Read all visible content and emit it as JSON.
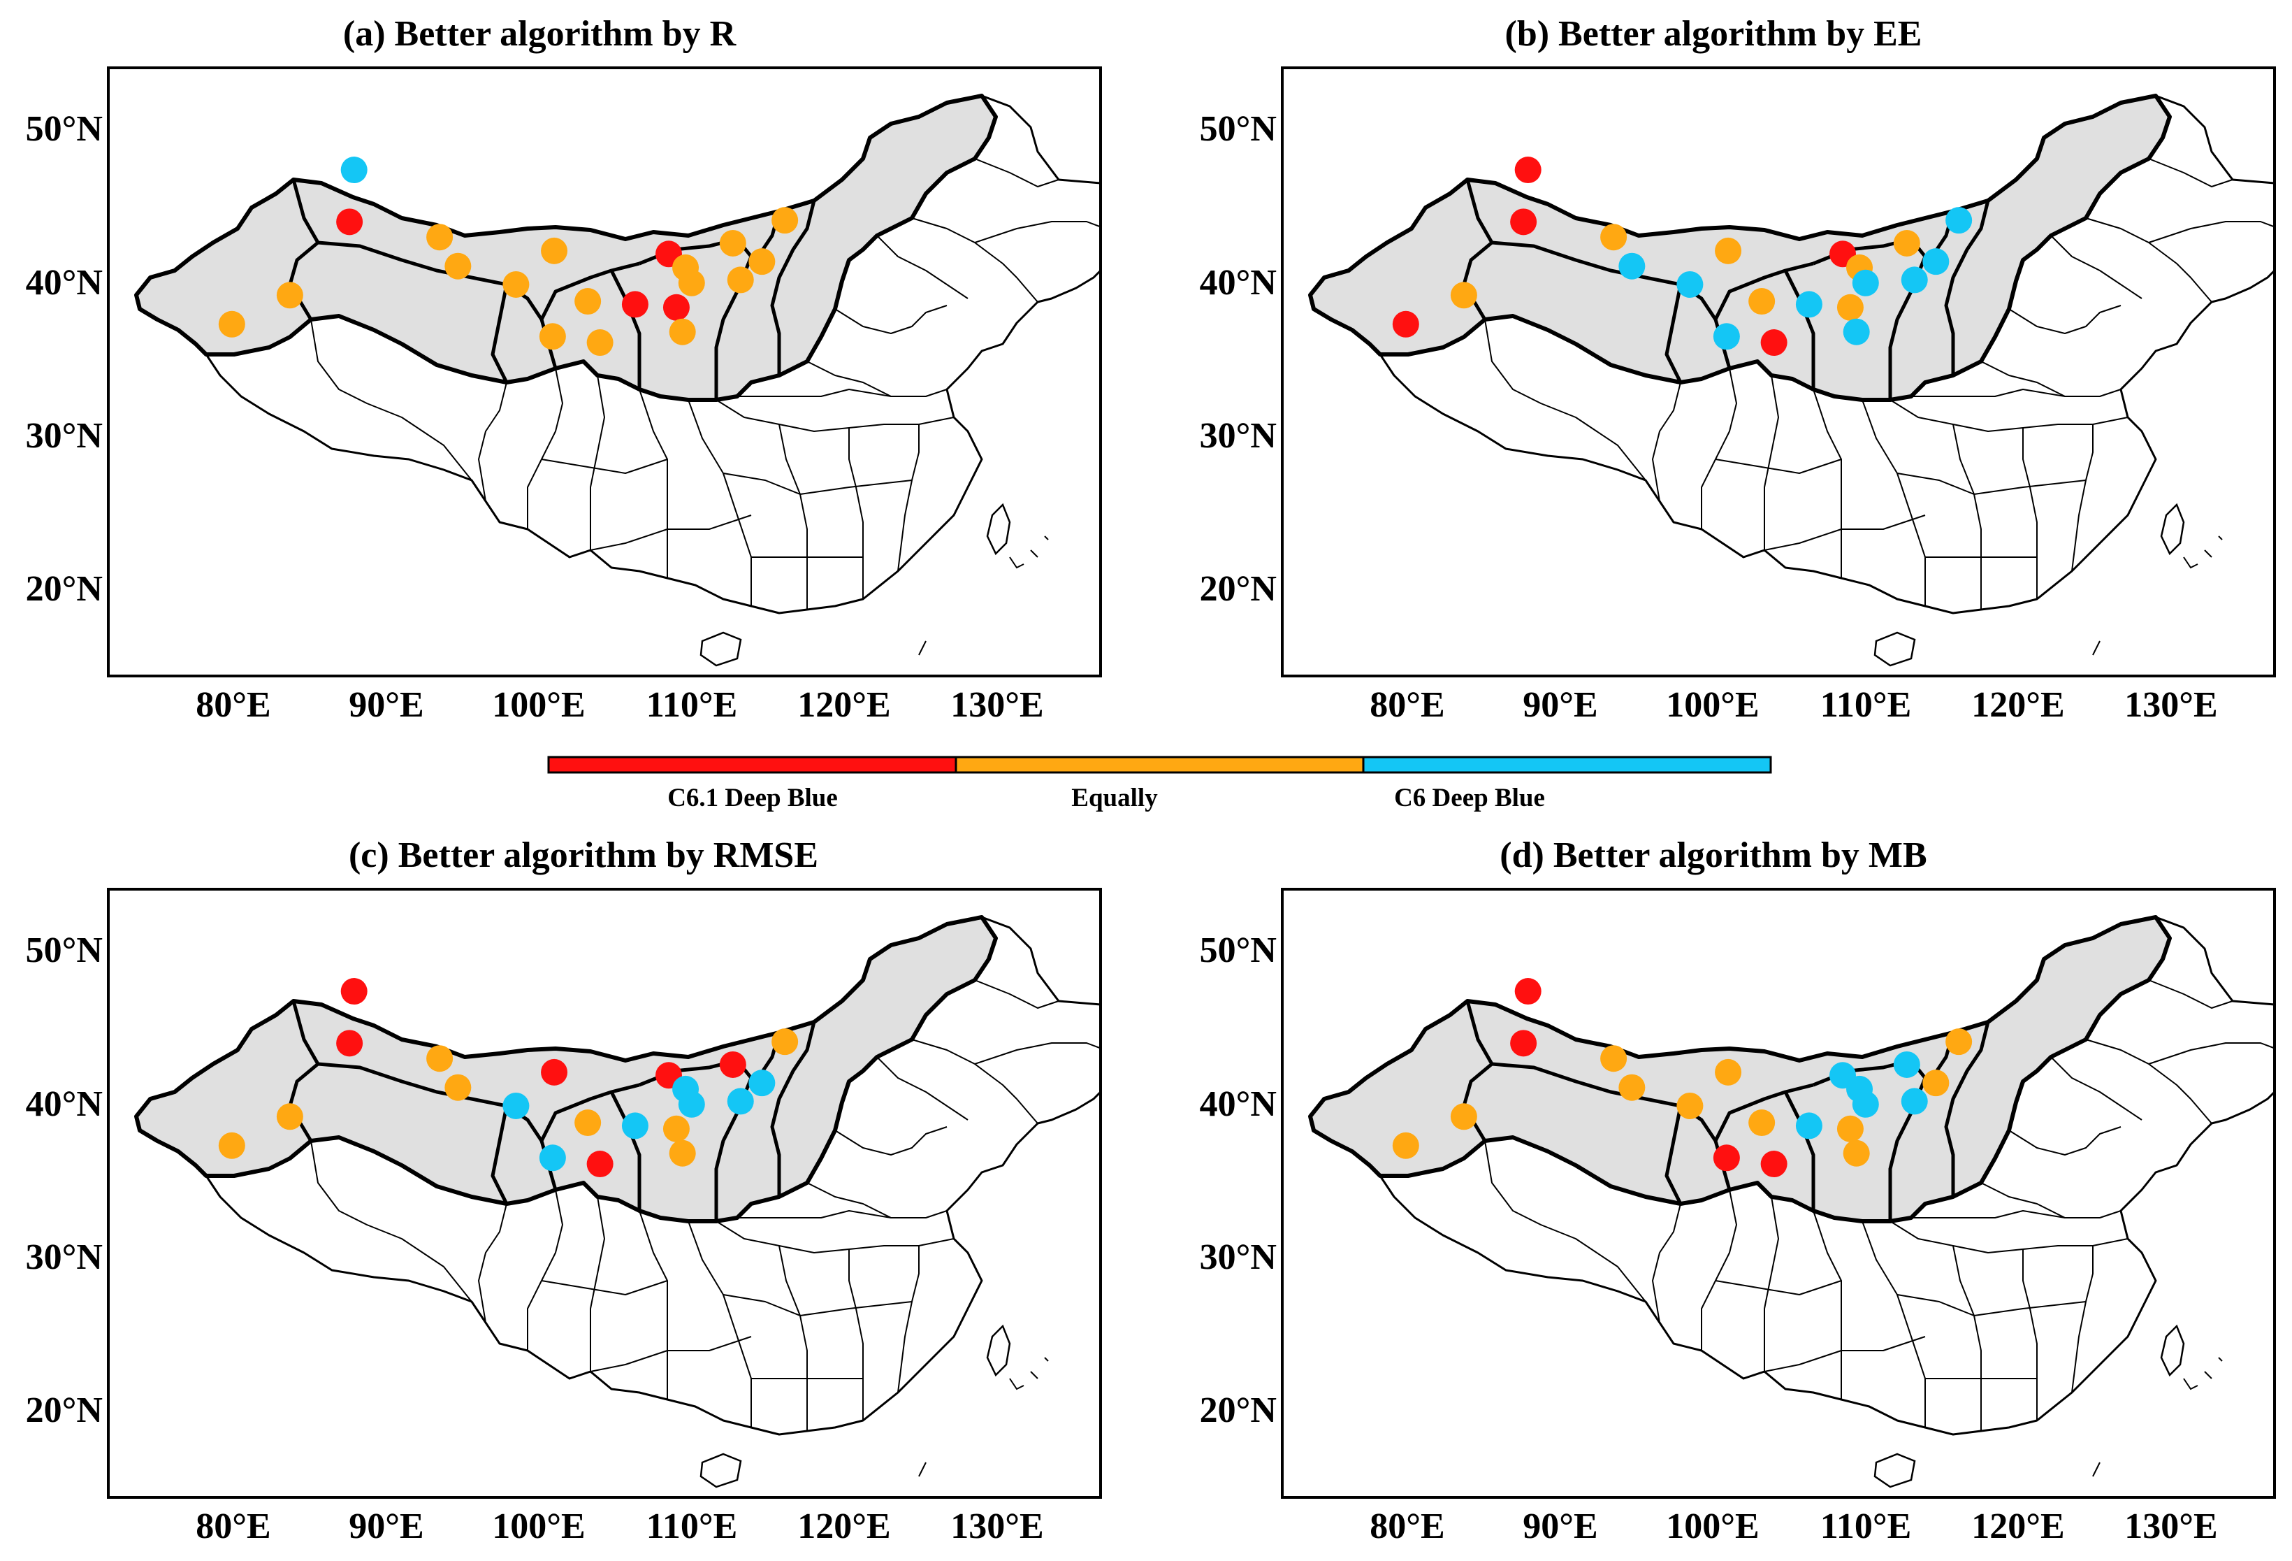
{
  "figure": {
    "panels": [
      {
        "title": "(a) Better algorithm by R",
        "sites": [
          {
            "lon": 87.9,
            "lat": 47.3,
            "cat": "C6 Deep Blue"
          },
          {
            "lon": 87.6,
            "lat": 43.9,
            "cat": "C6.1 Deep Blue"
          },
          {
            "lon": 79.9,
            "lat": 37.2,
            "cat": "Equally"
          },
          {
            "lon": 83.7,
            "lat": 39.1,
            "cat": "Equally"
          },
          {
            "lon": 93.5,
            "lat": 42.9,
            "cat": "Equally"
          },
          {
            "lon": 94.7,
            "lat": 41.0,
            "cat": "Equally"
          },
          {
            "lon": 98.5,
            "lat": 39.8,
            "cat": "Equally"
          },
          {
            "lon": 101.0,
            "lat": 42.0,
            "cat": "Equally"
          },
          {
            "lon": 100.9,
            "lat": 36.4,
            "cat": "Equally"
          },
          {
            "lon": 103.2,
            "lat": 38.7,
            "cat": "Equally"
          },
          {
            "lon": 104.0,
            "lat": 36.0,
            "cat": "Equally"
          },
          {
            "lon": 106.3,
            "lat": 38.5,
            "cat": "C6.1 Deep Blue"
          },
          {
            "lon": 108.5,
            "lat": 41.8,
            "cat": "C6.1 Deep Blue"
          },
          {
            "lon": 109.0,
            "lat": 38.3,
            "cat": "C6.1 Deep Blue"
          },
          {
            "lon": 109.6,
            "lat": 40.9,
            "cat": "Equally"
          },
          {
            "lon": 110.0,
            "lat": 39.9,
            "cat": "Equally"
          },
          {
            "lon": 109.4,
            "lat": 36.7,
            "cat": "Equally"
          },
          {
            "lon": 112.7,
            "lat": 42.5,
            "cat": "Equally"
          },
          {
            "lon": 113.2,
            "lat": 40.1,
            "cat": "Equally"
          },
          {
            "lon": 114.6,
            "lat": 41.3,
            "cat": "Equally"
          },
          {
            "lon": 116.1,
            "lat": 44.0,
            "cat": "Equally"
          }
        ]
      },
      {
        "title": "(b) Better algorithm by EE",
        "sites": [
          {
            "lon": 87.9,
            "lat": 47.3,
            "cat": "C6.1 Deep Blue"
          },
          {
            "lon": 87.6,
            "lat": 43.9,
            "cat": "C6.1 Deep Blue"
          },
          {
            "lon": 79.9,
            "lat": 37.2,
            "cat": "C6.1 Deep Blue"
          },
          {
            "lon": 83.7,
            "lat": 39.1,
            "cat": "Equally"
          },
          {
            "lon": 93.5,
            "lat": 42.9,
            "cat": "Equally"
          },
          {
            "lon": 94.7,
            "lat": 41.0,
            "cat": "C6 Deep Blue"
          },
          {
            "lon": 98.5,
            "lat": 39.8,
            "cat": "C6 Deep Blue"
          },
          {
            "lon": 101.0,
            "lat": 42.0,
            "cat": "Equally"
          },
          {
            "lon": 100.9,
            "lat": 36.4,
            "cat": "C6 Deep Blue"
          },
          {
            "lon": 103.2,
            "lat": 38.7,
            "cat": "Equally"
          },
          {
            "lon": 104.0,
            "lat": 36.0,
            "cat": "C6.1 Deep Blue"
          },
          {
            "lon": 106.3,
            "lat": 38.5,
            "cat": "C6 Deep Blue"
          },
          {
            "lon": 108.5,
            "lat": 41.8,
            "cat": "C6.1 Deep Blue"
          },
          {
            "lon": 109.0,
            "lat": 38.3,
            "cat": "Equally"
          },
          {
            "lon": 109.6,
            "lat": 40.9,
            "cat": "Equally"
          },
          {
            "lon": 110.0,
            "lat": 39.9,
            "cat": "C6 Deep Blue"
          },
          {
            "lon": 109.4,
            "lat": 36.7,
            "cat": "C6 Deep Blue"
          },
          {
            "lon": 112.7,
            "lat": 42.5,
            "cat": "Equally"
          },
          {
            "lon": 113.2,
            "lat": 40.1,
            "cat": "C6 Deep Blue"
          },
          {
            "lon": 114.6,
            "lat": 41.3,
            "cat": "C6 Deep Blue"
          },
          {
            "lon": 116.1,
            "lat": 44.0,
            "cat": "C6 Deep Blue"
          }
        ]
      },
      {
        "title": "(c) Better algorithm by RMSE",
        "sites": [
          {
            "lon": 87.9,
            "lat": 47.3,
            "cat": "C6.1 Deep Blue"
          },
          {
            "lon": 87.6,
            "lat": 43.9,
            "cat": "C6.1 Deep Blue"
          },
          {
            "lon": 79.9,
            "lat": 37.2,
            "cat": "Equally"
          },
          {
            "lon": 83.7,
            "lat": 39.1,
            "cat": "Equally"
          },
          {
            "lon": 93.5,
            "lat": 42.9,
            "cat": "Equally"
          },
          {
            "lon": 94.7,
            "lat": 41.0,
            "cat": "Equally"
          },
          {
            "lon": 98.5,
            "lat": 39.8,
            "cat": "C6 Deep Blue"
          },
          {
            "lon": 101.0,
            "lat": 42.0,
            "cat": "C6.1 Deep Blue"
          },
          {
            "lon": 100.9,
            "lat": 36.4,
            "cat": "C6 Deep Blue"
          },
          {
            "lon": 103.2,
            "lat": 38.7,
            "cat": "Equally"
          },
          {
            "lon": 104.0,
            "lat": 36.0,
            "cat": "C6.1 Deep Blue"
          },
          {
            "lon": 106.3,
            "lat": 38.5,
            "cat": "C6 Deep Blue"
          },
          {
            "lon": 108.5,
            "lat": 41.8,
            "cat": "C6.1 Deep Blue"
          },
          {
            "lon": 109.0,
            "lat": 38.3,
            "cat": "Equally"
          },
          {
            "lon": 109.6,
            "lat": 40.9,
            "cat": "C6 Deep Blue"
          },
          {
            "lon": 110.0,
            "lat": 39.9,
            "cat": "C6 Deep Blue"
          },
          {
            "lon": 109.4,
            "lat": 36.7,
            "cat": "Equally"
          },
          {
            "lon": 112.7,
            "lat": 42.5,
            "cat": "C6.1 Deep Blue"
          },
          {
            "lon": 113.2,
            "lat": 40.1,
            "cat": "C6 Deep Blue"
          },
          {
            "lon": 114.6,
            "lat": 41.3,
            "cat": "C6 Deep Blue"
          },
          {
            "lon": 116.1,
            "lat": 44.0,
            "cat": "Equally"
          }
        ]
      },
      {
        "title": "(d) Better algorithm by MB",
        "sites": [
          {
            "lon": 87.9,
            "lat": 47.3,
            "cat": "C6.1 Deep Blue"
          },
          {
            "lon": 87.6,
            "lat": 43.9,
            "cat": "C6.1 Deep Blue"
          },
          {
            "lon": 79.9,
            "lat": 37.2,
            "cat": "Equally"
          },
          {
            "lon": 83.7,
            "lat": 39.1,
            "cat": "Equally"
          },
          {
            "lon": 93.5,
            "lat": 42.9,
            "cat": "Equally"
          },
          {
            "lon": 94.7,
            "lat": 41.0,
            "cat": "Equally"
          },
          {
            "lon": 98.5,
            "lat": 39.8,
            "cat": "Equally"
          },
          {
            "lon": 101.0,
            "lat": 42.0,
            "cat": "Equally"
          },
          {
            "lon": 100.9,
            "lat": 36.4,
            "cat": "C6.1 Deep Blue"
          },
          {
            "lon": 103.2,
            "lat": 38.7,
            "cat": "Equally"
          },
          {
            "lon": 104.0,
            "lat": 36.0,
            "cat": "C6.1 Deep Blue"
          },
          {
            "lon": 106.3,
            "lat": 38.5,
            "cat": "C6 Deep Blue"
          },
          {
            "lon": 108.5,
            "lat": 41.8,
            "cat": "C6 Deep Blue"
          },
          {
            "lon": 109.0,
            "lat": 38.3,
            "cat": "Equally"
          },
          {
            "lon": 109.6,
            "lat": 40.9,
            "cat": "C6 Deep Blue"
          },
          {
            "lon": 110.0,
            "lat": 39.9,
            "cat": "C6 Deep Blue"
          },
          {
            "lon": 109.4,
            "lat": 36.7,
            "cat": "Equally"
          },
          {
            "lon": 112.7,
            "lat": 42.5,
            "cat": "C6 Deep Blue"
          },
          {
            "lon": 113.2,
            "lat": 40.1,
            "cat": "C6 Deep Blue"
          },
          {
            "lon": 114.6,
            "lat": 41.3,
            "cat": "Equally"
          },
          {
            "lon": 116.1,
            "lat": 44.0,
            "cat": "Equally"
          }
        ]
      }
    ],
    "axes": {
      "lon_ticks": [
        "80°E",
        "90°E",
        "100°E",
        "110°E",
        "120°E",
        "130°E"
      ],
      "lon_values": [
        80,
        90,
        100,
        110,
        120,
        130
      ],
      "lat_ticks": [
        "50°N",
        "40°N",
        "30°N",
        "20°N"
      ],
      "lat_values": [
        50,
        40,
        30,
        20
      ],
      "lon_range": [
        72,
        137
      ],
      "lat_range": [
        14,
        54
      ]
    },
    "legend": {
      "categories": [
        "C6.1 Deep Blue",
        "Equally",
        "C6 Deep Blue"
      ],
      "colors": [
        "#ff1010",
        "#ffa812",
        "#14c6f5"
      ]
    }
  }
}
